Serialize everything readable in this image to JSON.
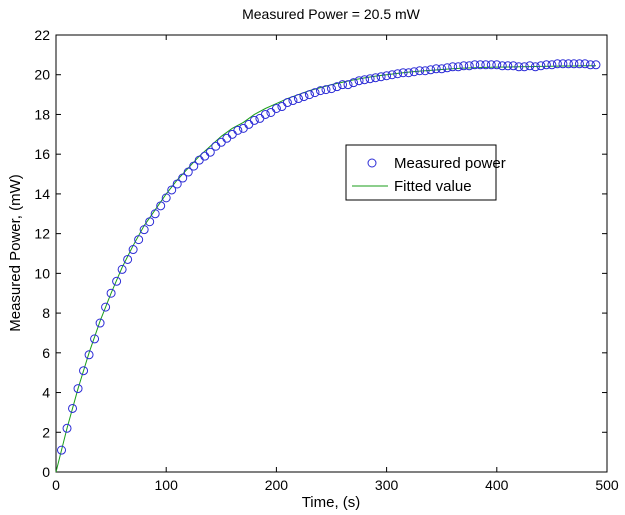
{
  "chart_data": {
    "type": "scatter",
    "title": "Measured Power = 20.5 mW",
    "xlabel": "Time, (s)",
    "ylabel": "Measured Power, (mW)",
    "xlim": [
      0,
      500
    ],
    "ylim": [
      0,
      22
    ],
    "xticks": [
      0,
      100,
      200,
      300,
      400,
      500
    ],
    "yticks": [
      0,
      2,
      4,
      6,
      8,
      10,
      12,
      14,
      16,
      18,
      20,
      22
    ],
    "grid": false,
    "legend_position": "center-right",
    "series": [
      {
        "name": "Measured power",
        "kind": "markers",
        "marker": "circle",
        "color": "#2b2bd6",
        "x": [
          5,
          10,
          15,
          20,
          25,
          30,
          35,
          40,
          45,
          50,
          55,
          60,
          65,
          70,
          75,
          80,
          85,
          90,
          95,
          100,
          105,
          110,
          115,
          120,
          125,
          130,
          135,
          140,
          145,
          150,
          155,
          160,
          165,
          170,
          175,
          180,
          185,
          190,
          195,
          200,
          205,
          210,
          215,
          220,
          225,
          230,
          235,
          240,
          245,
          250,
          255,
          260,
          265,
          270,
          275,
          280,
          285,
          290,
          295,
          300,
          305,
          310,
          315,
          320,
          325,
          330,
          335,
          340,
          345,
          350,
          355,
          360,
          365,
          370,
          375,
          380,
          385,
          390,
          395,
          400,
          405,
          410,
          415,
          420,
          425,
          430,
          435,
          440,
          445,
          450,
          455,
          460,
          465,
          470,
          475,
          480,
          485,
          490
        ],
        "y": [
          1.1,
          2.2,
          3.2,
          4.2,
          5.1,
          5.9,
          6.7,
          7.5,
          8.3,
          9.0,
          9.6,
          10.2,
          10.7,
          11.2,
          11.7,
          12.2,
          12.6,
          13.0,
          13.4,
          13.8,
          14.2,
          14.5,
          14.8,
          15.1,
          15.4,
          15.7,
          15.9,
          16.1,
          16.4,
          16.6,
          16.8,
          17.0,
          17.2,
          17.3,
          17.5,
          17.7,
          17.8,
          18.0,
          18.1,
          18.3,
          18.4,
          18.6,
          18.7,
          18.8,
          18.9,
          19.0,
          19.1,
          19.2,
          19.25,
          19.3,
          19.4,
          19.5,
          19.5,
          19.6,
          19.7,
          19.75,
          19.8,
          19.85,
          19.9,
          19.95,
          20.0,
          20.05,
          20.1,
          20.1,
          20.15,
          20.2,
          20.2,
          20.25,
          20.3,
          20.3,
          20.35,
          20.4,
          20.4,
          20.45,
          20.45,
          20.5,
          20.5,
          20.5,
          20.5,
          20.5,
          20.45,
          20.45,
          20.45,
          20.4,
          20.4,
          20.45,
          20.4,
          20.45,
          20.5,
          20.5,
          20.55,
          20.55,
          20.55,
          20.55,
          20.55,
          20.55,
          20.5,
          20.5
        ]
      },
      {
        "name": "Fitted value",
        "kind": "line",
        "color": "#1a9e1a",
        "x": [
          0,
          10,
          20,
          30,
          40,
          50,
          60,
          70,
          80,
          90,
          100,
          110,
          120,
          130,
          140,
          150,
          160,
          170,
          180,
          190,
          200,
          210,
          220,
          230,
          240,
          250,
          260,
          270,
          280,
          290,
          300,
          310,
          320,
          330,
          340,
          350,
          360,
          370,
          380,
          390,
          400,
          410,
          420,
          430,
          440,
          450,
          460,
          470,
          480,
          490
        ],
        "y": [
          0.0,
          2.2,
          4.2,
          6.0,
          7.6,
          9.0,
          10.3,
          11.4,
          12.4,
          13.2,
          14.0,
          14.7,
          15.3,
          15.9,
          16.4,
          16.9,
          17.3,
          17.6,
          18.0,
          18.3,
          18.55,
          18.8,
          19.0,
          19.2,
          19.35,
          19.5,
          19.62,
          19.74,
          19.84,
          19.93,
          20.0,
          20.07,
          20.13,
          20.18,
          20.22,
          20.26,
          20.3,
          20.33,
          20.35,
          20.37,
          20.38,
          20.39,
          20.4,
          20.41,
          20.42,
          20.43,
          20.44,
          20.44,
          20.45,
          20.45
        ]
      }
    ]
  }
}
